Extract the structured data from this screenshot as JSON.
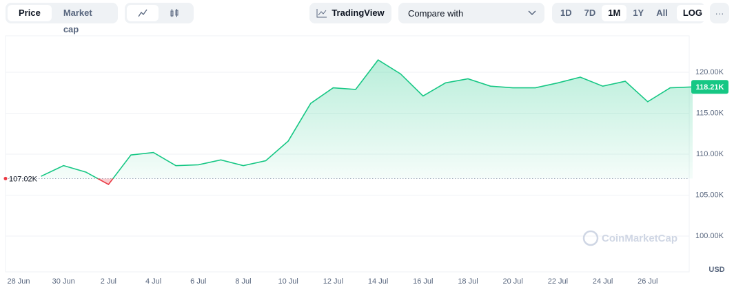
{
  "toolbar": {
    "modes": [
      "Price",
      "Market cap"
    ],
    "tradingview": "TradingView",
    "compare": "Compare with",
    "ranges": [
      "1D",
      "7D",
      "1M",
      "1Y",
      "All"
    ],
    "log": "LOG",
    "more": "···"
  },
  "chart_data": {
    "type": "line",
    "categories": [
      "28 Jun",
      "29 Jun",
      "30 Jun",
      "1 Jul",
      "2 Jul",
      "3 Jul",
      "4 Jul",
      "5 Jul",
      "6 Jul",
      "7 Jul",
      "8 Jul",
      "9 Jul",
      "10 Jul",
      "11 Jul",
      "12 Jul",
      "13 Jul",
      "14 Jul",
      "15 Jul",
      "16 Jul",
      "17 Jul",
      "18 Jul",
      "19 Jul",
      "20 Jul",
      "21 Jul",
      "22 Jul",
      "23 Jul",
      "24 Jul",
      "25 Jul",
      "26 Jul",
      "27 Jul",
      "28 Jul"
    ],
    "values": [
      null,
      107300,
      108600,
      107800,
      106300,
      109900,
      110200,
      108600,
      108700,
      109300,
      108600,
      109200,
      111600,
      116200,
      118100,
      117900,
      121500,
      119800,
      117100,
      118700,
      119200,
      118300,
      118100,
      118100,
      118700,
      119400,
      118300,
      118900,
      116400,
      118100,
      118210
    ],
    "color": "#16c784",
    "below_color": "#ea3943",
    "baseline": {
      "value": 107020,
      "label": "107.02K"
    },
    "current": {
      "value": 118210,
      "label": "118.21K"
    },
    "ylim": [
      95630,
      124450
    ],
    "yticks": [
      {
        "value": 100000,
        "label": "100.00K"
      },
      {
        "value": 105000,
        "label": "105.00K"
      },
      {
        "value": 110000,
        "label": "110.00K"
      },
      {
        "value": 115000,
        "label": "115.00K"
      },
      {
        "value": 120000,
        "label": "120.00K"
      }
    ],
    "xticks": [
      "28 Jun",
      "30 Jun",
      "2 Jul",
      "4 Jul",
      "6 Jul",
      "8 Jul",
      "10 Jul",
      "12 Jul",
      "14 Jul",
      "16 Jul",
      "18 Jul",
      "20 Jul",
      "22 Jul",
      "24 Jul",
      "26 Jul"
    ],
    "grid": true,
    "currency": "USD",
    "watermark": "CoinMarketCap"
  }
}
